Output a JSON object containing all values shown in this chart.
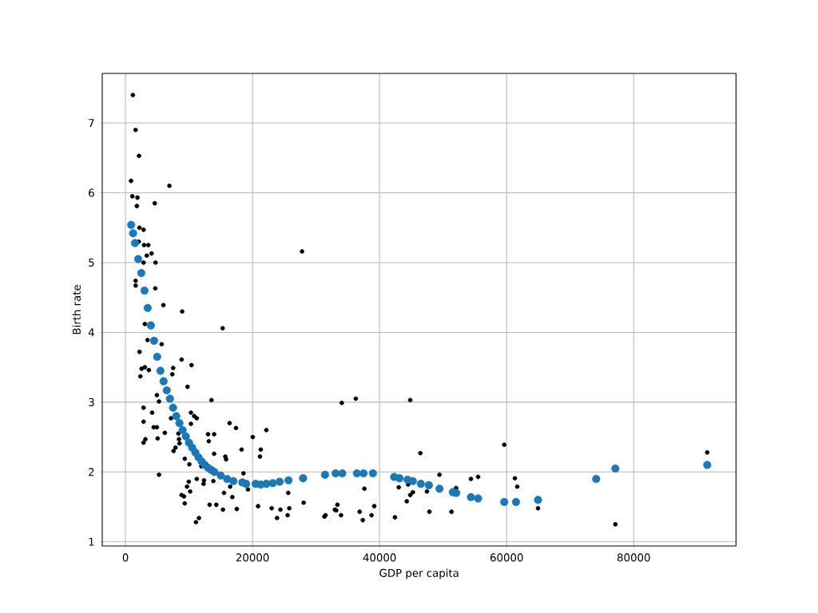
{
  "chart_data": {
    "type": "scatter",
    "xlabel": "GDP per capita",
    "ylabel": "Birth rate",
    "xlim": [
      -3650,
      96100
    ],
    "ylim": [
      0.94,
      7.71
    ],
    "xticks": [
      0,
      20000,
      40000,
      60000,
      80000
    ],
    "yticks": [
      1,
      2,
      3,
      4,
      5,
      6,
      7
    ],
    "grid": true,
    "series": [
      {
        "color": "#000000",
        "x": [
          1170,
          1600,
          2140,
          880,
          6920,
          1090,
          1890,
          1800,
          4610,
          2200,
          2850,
          2100,
          2930,
          3600,
          4110,
          3360,
          2850,
          4740,
          1600,
          1600,
          4700,
          5970,
          8930,
          3060,
          15300,
          3480,
          5700,
          2220,
          8840,
          10400,
          2550,
          3060,
          3690,
          7510,
          7380,
          2350,
          9770,
          13540,
          4950,
          5280,
          2850,
          4200,
          2850,
          4450,
          4950,
          6200,
          10310,
          10820,
          11230,
          7170,
          10310,
          16390,
          17400,
          20040,
          13000,
          13960,
          13120,
          8340,
          8430,
          8510,
          7880,
          7580,
          5070,
          3140,
          2850,
          18280,
          21300,
          21170,
          13960,
          15720,
          15850,
          9340,
          10060,
          11950,
          5280,
          11230,
          9970,
          12370,
          12290,
          13840,
          9690,
          10190,
          8840,
          9220,
          9340,
          13250,
          14300,
          15350,
          17530,
          11570,
          11100,
          15510,
          16820,
          16480,
          18580,
          19290,
          20880,
          21300,
          22180,
          23020,
          23860,
          24400,
          25620,
          25530,
          25790,
          28050,
          27800,
          34050,
          36260,
          31320,
          31490,
          32960,
          33370,
          33170,
          33930,
          37610,
          36860,
          37360,
          38740,
          39160,
          44820,
          46420,
          42420,
          43020,
          44490,
          44280,
          44820,
          45240,
          47460,
          47840,
          49430,
          51320,
          52040,
          54380,
          55510,
          59620,
          61300,
          61670,
          64940,
          77110,
          91570
        ],
        "values": [
          7.4,
          6.9,
          6.53,
          6.17,
          6.1,
          5.95,
          5.93,
          5.81,
          5.85,
          5.5,
          5.47,
          5.3,
          5.25,
          5.25,
          5.13,
          5.1,
          5.0,
          5.0,
          4.74,
          4.67,
          4.63,
          4.39,
          4.3,
          4.12,
          4.06,
          3.89,
          3.83,
          3.72,
          3.61,
          3.53,
          3.48,
          3.5,
          3.46,
          3.49,
          3.4,
          3.37,
          3.22,
          3.03,
          3.1,
          3.01,
          2.92,
          2.85,
          2.72,
          2.64,
          2.64,
          2.56,
          2.85,
          2.8,
          2.77,
          2.77,
          2.69,
          2.7,
          2.63,
          2.5,
          2.54,
          2.54,
          2.44,
          2.55,
          2.47,
          2.41,
          2.35,
          2.3,
          2.48,
          2.47,
          2.42,
          2.32,
          2.32,
          2.22,
          2.26,
          2.22,
          2.18,
          2.19,
          2.11,
          2.08,
          1.96,
          1.9,
          1.86,
          1.88,
          1.83,
          1.87,
          1.79,
          1.72,
          1.67,
          1.65,
          1.55,
          1.53,
          1.53,
          1.46,
          1.47,
          1.34,
          1.28,
          1.7,
          1.64,
          1.79,
          1.98,
          1.75,
          1.51,
          null,
          2.6,
          1.48,
          1.34,
          1.46,
          1.7,
          1.38,
          1.48,
          1.56,
          5.16,
          2.99,
          3.05,
          1.36,
          1.38,
          1.46,
          1.53,
          1.45,
          1.38,
          1.76,
          1.43,
          1.31,
          1.38,
          1.51,
          3.03,
          2.27,
          1.35,
          1.78,
          1.82,
          1.58,
          1.67,
          1.71,
          1.72,
          1.43,
          1.96,
          1.43,
          1.77,
          1.9,
          1.93,
          2.39,
          1.91,
          1.79,
          1.48,
          1.25,
          2.28
        ]
      },
      {
        "color": "#1f77b4",
        "x": [
          900,
          1200,
          1500,
          2000,
          2500,
          3000,
          3500,
          4000,
          4500,
          5000,
          5500,
          6000,
          6500,
          7000,
          7500,
          8000,
          8500,
          9000,
          9500,
          10000,
          10500,
          11000,
          11500,
          12000,
          12500,
          13000,
          13500,
          14000,
          15000,
          16000,
          17000,
          18400,
          19000,
          20500,
          21300,
          22180,
          23200,
          24280,
          25660,
          27960,
          31410,
          33080,
          34130,
          36440,
          37480,
          38960,
          42300,
          43140,
          44400,
          45240,
          46500,
          47760,
          49430,
          51530,
          52080,
          54380,
          55510,
          59620,
          61470,
          64940,
          74090,
          77110,
          91570
        ],
        "values": [
          5.54,
          5.42,
          5.28,
          5.05,
          4.85,
          4.6,
          4.35,
          4.1,
          3.88,
          3.65,
          3.45,
          3.3,
          3.17,
          3.05,
          2.92,
          2.8,
          2.7,
          2.6,
          2.51,
          2.42,
          2.35,
          2.28,
          2.21,
          2.15,
          2.1,
          2.06,
          2.03,
          2.0,
          1.95,
          1.9,
          1.87,
          1.85,
          1.83,
          1.83,
          1.82,
          1.83,
          1.84,
          1.86,
          1.88,
          1.91,
          1.96,
          1.98,
          1.98,
          1.98,
          1.98,
          1.98,
          1.93,
          1.91,
          1.89,
          1.87,
          1.83,
          1.81,
          1.76,
          1.71,
          1.7,
          1.64,
          1.62,
          1.57,
          1.57,
          1.6,
          1.9,
          2.05,
          2.1
        ]
      }
    ]
  }
}
